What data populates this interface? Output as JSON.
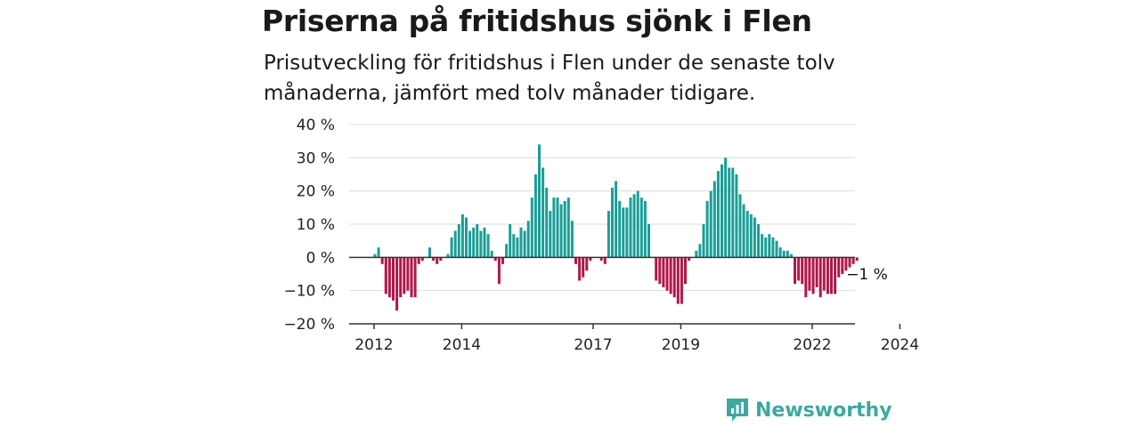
{
  "chart_data": {
    "type": "bar",
    "title": "Priserna på fritidshus sjönk i Flen",
    "subtitle": "Prisutveckling för fritidshus i Flen under de senaste tolv månaderna, jämfört med tolv månader tidigare.",
    "ylabel": "",
    "xlabel": "",
    "ylim": [
      -20,
      40
    ],
    "yticks": [
      40,
      30,
      20,
      10,
      0,
      -10,
      -20
    ],
    "ytick_labels": [
      "40 %",
      "30 %",
      "20 %",
      "10 %",
      "0 %",
      "−10 %",
      "−20 %"
    ],
    "xticks": [
      "2012",
      "2014",
      "2017",
      "2019",
      "2022",
      "2024"
    ],
    "x_start": "2012-01",
    "grid": true,
    "positive_color": "#1a9e96",
    "negative_color": "#b0174a",
    "end_label": "−1 %",
    "values": [
      1,
      3,
      -2,
      -11,
      -12,
      -13,
      -16,
      -12,
      -11,
      -10,
      -12,
      -12,
      -2,
      -1,
      0,
      3,
      -1,
      -2,
      -1,
      0,
      1,
      6,
      8,
      10,
      13,
      12,
      8,
      9,
      10,
      8,
      9,
      7,
      2,
      -1,
      -8,
      -2,
      4,
      10,
      7,
      6,
      9,
      8,
      11,
      18,
      25,
      34,
      27,
      21,
      14,
      18,
      18,
      16,
      17,
      18,
      11,
      -2,
      -7,
      -6,
      -4,
      -1,
      0,
      0,
      -1,
      -2,
      14,
      21,
      23,
      17,
      15,
      15,
      18,
      19,
      20,
      18,
      17,
      10,
      0,
      -7,
      -8,
      -9,
      -10,
      -11,
      -12,
      -14,
      -14,
      -8,
      -1,
      0,
      2,
      4,
      10,
      17,
      20,
      23,
      26,
      28,
      30,
      27,
      27,
      25,
      19,
      16,
      14,
      13,
      12,
      10,
      7,
      6,
      7,
      6,
      5,
      3,
      2,
      2,
      1,
      -8,
      -7,
      -8,
      -12,
      -10,
      -11,
      -9,
      -12,
      -10,
      -11,
      -11,
      -11,
      -6,
      -5,
      -4,
      -3,
      -2,
      -1
    ]
  },
  "brand": {
    "name": "Newsworthy",
    "color": "#3ea8a0",
    "icon": "newsworthy-logo-icon"
  }
}
